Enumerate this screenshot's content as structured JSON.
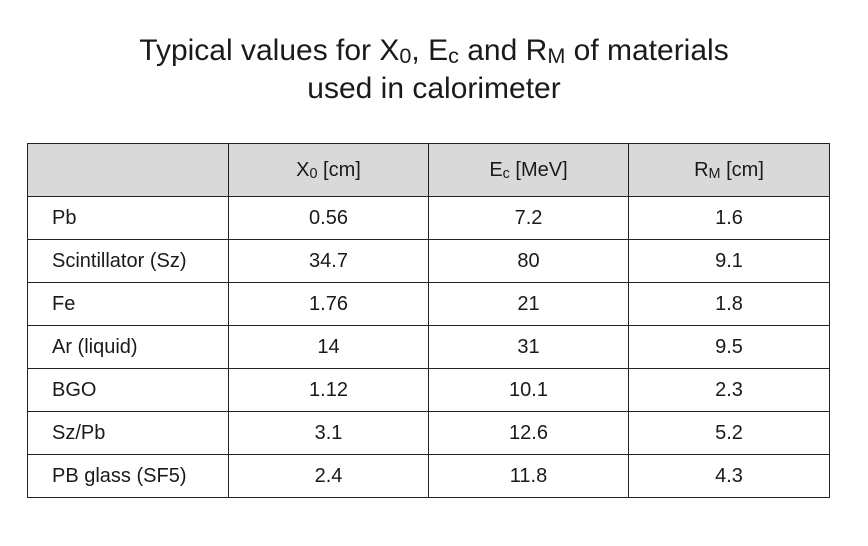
{
  "title": {
    "line1": {
      "prefix": "Typical values for ",
      "x0_main": "X",
      "x0_sub": "0",
      "sep1": ", ",
      "ec_main": "E",
      "ec_sub": "c",
      "sep2": " and ",
      "rm_main": "R",
      "rm_sub": "M",
      "suffix": " of materials"
    },
    "line2": "used in calorimeter"
  },
  "table": {
    "headers": [
      {
        "main": "",
        "sub": "",
        "unit": ""
      },
      {
        "main": "X",
        "sub": "0",
        "unit": " [cm]"
      },
      {
        "main": "E",
        "sub": "c",
        "unit": " [MeV]"
      },
      {
        "main": "R",
        "sub": "M",
        "unit": " [cm]"
      }
    ],
    "rows": [
      [
        "Pb",
        "0.56",
        "7.2",
        "1.6"
      ],
      [
        "Scintillator (Sz)",
        "34.7",
        "80",
        "9.1"
      ],
      [
        "Fe",
        "1.76",
        "21",
        "1.8"
      ],
      [
        "Ar (liquid)",
        "14",
        "31",
        "9.5"
      ],
      [
        "BGO",
        "1.12",
        "10.1",
        "2.3"
      ],
      [
        "Sz/Pb",
        "3.1",
        "12.6",
        "5.2"
      ],
      [
        "PB glass (SF5)",
        "2.4",
        "11.8",
        "4.3"
      ]
    ]
  },
  "colors": {
    "header_background": "#d9d9d9",
    "border": "#222222",
    "text": "#1a1a1a"
  }
}
